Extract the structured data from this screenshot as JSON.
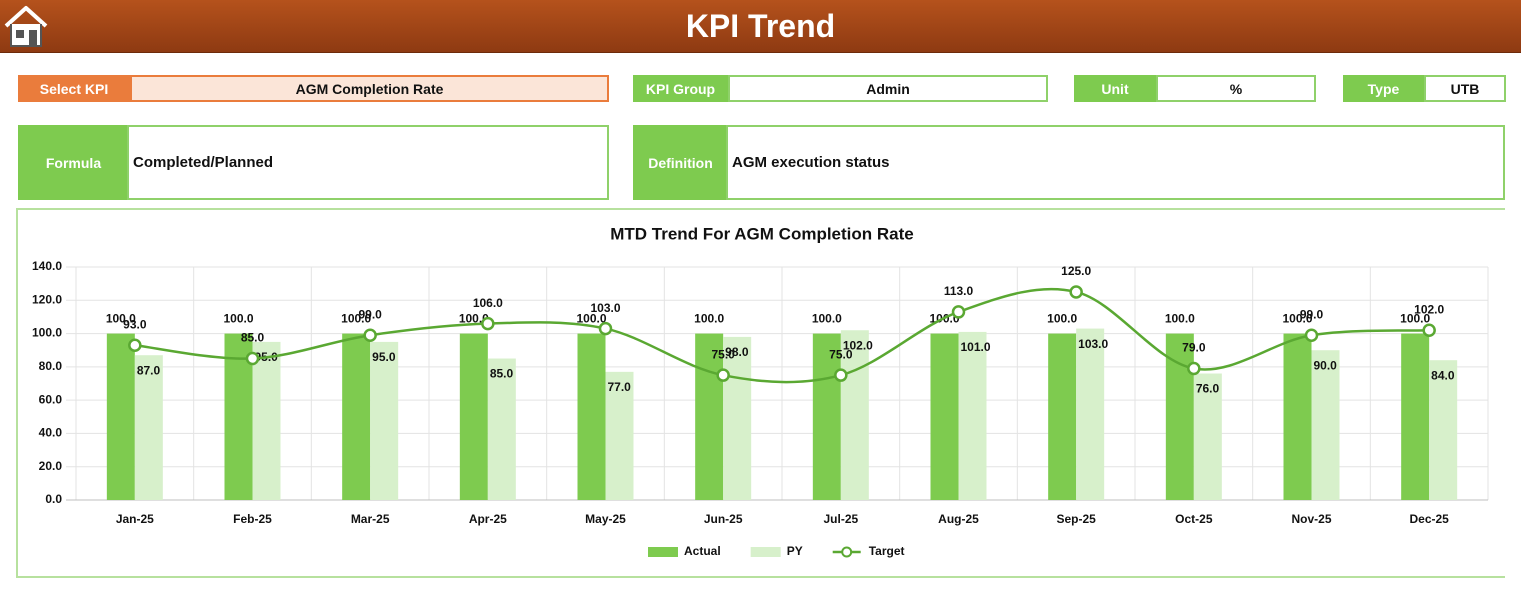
{
  "header": {
    "title": "KPI Trend"
  },
  "fields": {
    "select_kpi": {
      "label": "Select KPI",
      "value": "AGM Completion Rate"
    },
    "kpi_group": {
      "label": "KPI Group",
      "value": "Admin"
    },
    "unit": {
      "label": "Unit",
      "value": "%"
    },
    "type": {
      "label": "Type",
      "value": "UTB"
    },
    "formula": {
      "label": "Formula",
      "value": "Completed/Planned"
    },
    "definition": {
      "label": "Definition",
      "value": "AGM execution status"
    }
  },
  "chart_data": {
    "type": "bar",
    "title": "MTD Trend For AGM Completion Rate",
    "categories": [
      "Jan-25",
      "Feb-25",
      "Mar-25",
      "Apr-25",
      "May-25",
      "Jun-25",
      "Jul-25",
      "Aug-25",
      "Sep-25",
      "Oct-25",
      "Nov-25",
      "Dec-25"
    ],
    "series": [
      {
        "name": "Actual",
        "type": "bar",
        "color": "#7ecb4f",
        "values": [
          100,
          100,
          100,
          100,
          100,
          100,
          100,
          100,
          100,
          100,
          100,
          100
        ],
        "value_labels": [
          "100.0",
          "100.0",
          "100.0",
          "100.0",
          "100.0",
          "100.0",
          "100.0",
          "100.0",
          "100.0",
          "100.0",
          "100.0",
          "100.0"
        ]
      },
      {
        "name": "PY",
        "type": "bar",
        "color": "#d7f0cb",
        "values": [
          87,
          95,
          95,
          85,
          77,
          98,
          102,
          101,
          103,
          76,
          90,
          84
        ],
        "value_labels": [
          "87.0",
          "95.0",
          "95.0",
          "85.0",
          "77.0",
          "98.0",
          "102.0",
          "101.0",
          "103.0",
          "76.0",
          "90.0",
          "84.0"
        ]
      },
      {
        "name": "Target",
        "type": "line",
        "color": "#5aa832",
        "values": [
          93,
          85,
          99,
          106,
          103,
          75,
          75,
          113,
          125,
          79,
          99,
          102
        ],
        "value_labels": [
          "93.0",
          "85.0",
          "99.0",
          "106.0",
          "103.0",
          "75.0",
          "75.0",
          "113.0",
          "125.0",
          "79.0",
          "99.0",
          "102.0"
        ]
      }
    ],
    "ylim": [
      0,
      140
    ],
    "yticks": [
      {
        "value": 0,
        "label": "0.0"
      },
      {
        "value": 20,
        "label": "20.0"
      },
      {
        "value": 40,
        "label": "40.0"
      },
      {
        "value": 60,
        "label": "60.0"
      },
      {
        "value": 80,
        "label": "80.0"
      },
      {
        "value": 100,
        "label": "100.0"
      },
      {
        "value": 120,
        "label": "120.0"
      },
      {
        "value": 140,
        "label": "140.0"
      }
    ],
    "grid": true,
    "legend": "bottom"
  }
}
